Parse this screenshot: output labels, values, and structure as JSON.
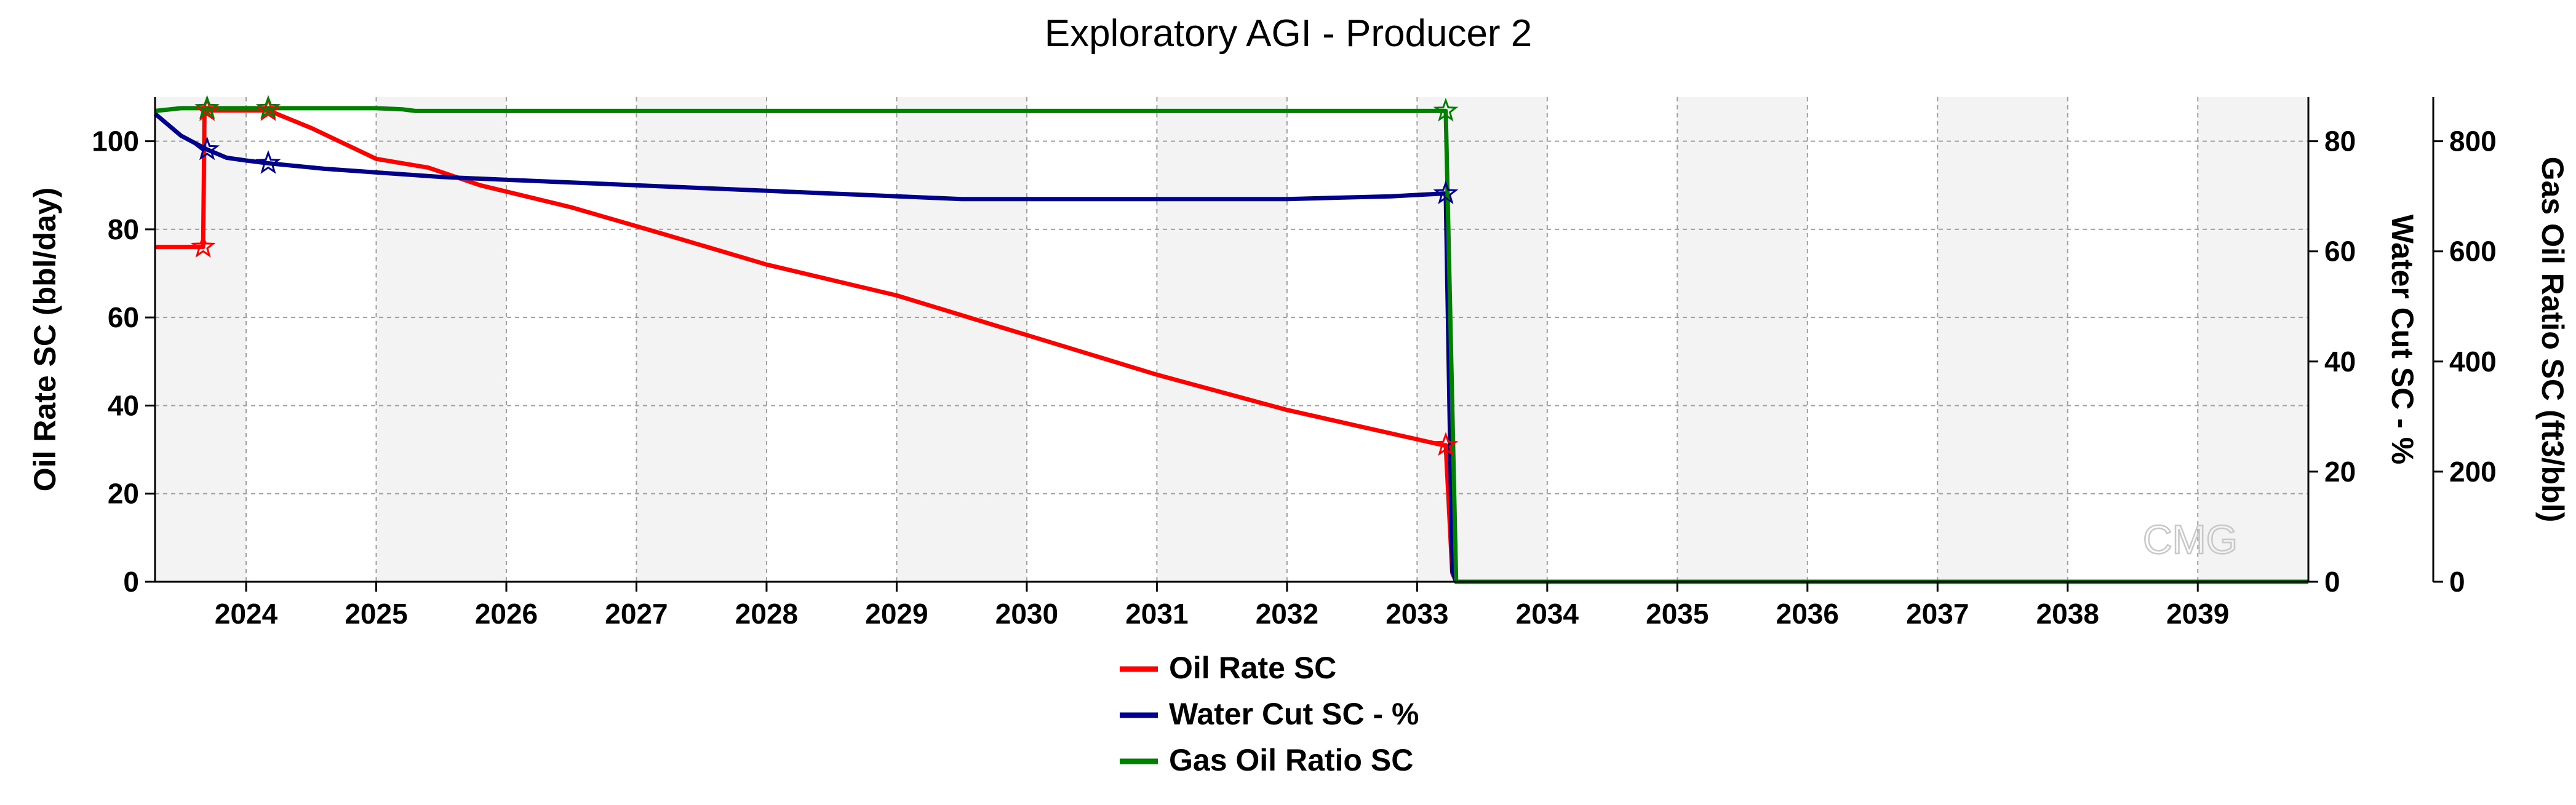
{
  "chart_data": {
    "type": "line",
    "title": "Exploratory AGI - Producer 2",
    "xlabel": "",
    "xlim": [
      2023.3,
      2039.85
    ],
    "x_ticks": [
      2024,
      2025,
      2026,
      2027,
      2028,
      2029,
      2030,
      2031,
      2032,
      2033,
      2034,
      2035,
      2036,
      2037,
      2038,
      2039
    ],
    "x_tick_labels": [
      "2024",
      "2025",
      "2026",
      "2027",
      "2028",
      "2029",
      "2030",
      "2031",
      "2032",
      "2033",
      "2034",
      "2035",
      "2036",
      "2037",
      "2038",
      "2039"
    ],
    "axes": [
      {
        "id": "oil",
        "label": "Oil Rate SC (bbl/day)",
        "position": "left",
        "ylim": [
          0,
          110
        ],
        "ticks": [
          0,
          20,
          40,
          60,
          80,
          100
        ],
        "tick_labels": [
          "0",
          "20",
          "40",
          "60",
          "80",
          "100"
        ]
      },
      {
        "id": "wc",
        "label": "Water Cut SC - %",
        "position": "right",
        "ylim": [
          0,
          88
        ],
        "ticks": [
          0,
          20,
          40,
          60,
          80
        ],
        "tick_labels": [
          "0",
          "20",
          "40",
          "60",
          "80"
        ]
      },
      {
        "id": "gor",
        "label": "Gas Oil Ratio SC (ft3/bbl)",
        "position": "right-outer",
        "ylim": [
          0,
          880
        ],
        "ticks": [
          0,
          200,
          400,
          600,
          800
        ],
        "tick_labels": [
          "0",
          "200",
          "400",
          "600",
          "800"
        ]
      }
    ],
    "series": [
      {
        "name": "Oil Rate SC",
        "axis": "oil",
        "color": "#ff0000",
        "x": [
          2023.3,
          2023.67,
          2023.68,
          2023.7,
          2024.0,
          2024.17,
          2024.5,
          2025.0,
          2025.4,
          2025.8,
          2026.5,
          2027.2,
          2028.0,
          2029.0,
          2030.0,
          2031.0,
          2032.0,
          2032.6,
          2033.2,
          2033.22,
          2033.27,
          2033.3,
          2039.85
        ],
        "values": [
          76,
          76,
          107,
          107,
          107,
          107,
          103,
          96,
          94,
          90,
          85,
          79,
          72,
          65,
          56,
          47,
          39,
          35,
          31,
          31,
          2,
          0,
          0
        ]
      },
      {
        "name": "Water Cut SC - %",
        "axis": "wc",
        "color": "#00008b",
        "x": [
          2023.3,
          2023.5,
          2023.7,
          2023.85,
          2024.0,
          2024.17,
          2024.6,
          2025.5,
          2026.5,
          2027.5,
          2028.5,
          2029.5,
          2030.0,
          2031.0,
          2032.0,
          2032.8,
          2033.2,
          2033.22,
          2033.27,
          2033.3,
          2039.85
        ],
        "values": [
          85,
          81,
          78.5,
          77,
          76.5,
          76,
          75,
          73.5,
          72.5,
          71.5,
          70.5,
          69.5,
          69.5,
          69.5,
          69.5,
          70,
          70.5,
          70.5,
          2,
          0,
          0
        ]
      },
      {
        "name": "Gas Oil Ratio SC",
        "axis": "gor",
        "color": "#008000",
        "x": [
          2023.3,
          2023.5,
          2023.7,
          2024.0,
          2024.5,
          2025.0,
          2025.2,
          2025.3,
          2026.0,
          2027.0,
          2028.0,
          2029.0,
          2030.0,
          2031.0,
          2032.0,
          2033.0,
          2033.22,
          2033.3,
          2039.85
        ],
        "values": [
          855,
          860,
          860,
          860,
          860,
          860,
          858,
          855,
          855,
          855,
          855,
          855,
          855,
          855,
          855,
          855,
          855,
          0,
          0
        ]
      }
    ],
    "markers": [
      {
        "series": "Oil Rate SC",
        "x": 2023.67,
        "value": 76
      },
      {
        "series": "Oil Rate SC",
        "x": 2023.7,
        "value": 107
      },
      {
        "series": "Oil Rate SC",
        "x": 2024.17,
        "value": 107
      },
      {
        "series": "Oil Rate SC",
        "x": 2033.22,
        "value": 31
      },
      {
        "series": "Water Cut SC - %",
        "x": 2023.7,
        "value": 78.5
      },
      {
        "series": "Water Cut SC - %",
        "x": 2024.17,
        "value": 76
      },
      {
        "series": "Water Cut SC - %",
        "x": 2033.22,
        "value": 70.5
      },
      {
        "series": "Gas Oil Ratio SC",
        "x": 2023.7,
        "value": 860
      },
      {
        "series": "Gas Oil Ratio SC",
        "x": 2024.17,
        "value": 860
      },
      {
        "series": "Gas Oil Ratio SC",
        "x": 2033.22,
        "value": 855
      }
    ],
    "legend": {
      "placement": "bottom-center",
      "entries": [
        "Oil Rate SC",
        "Water Cut SC - %",
        "Gas Oil Ratio SC"
      ]
    },
    "grid": true,
    "watermark": "CMG"
  }
}
